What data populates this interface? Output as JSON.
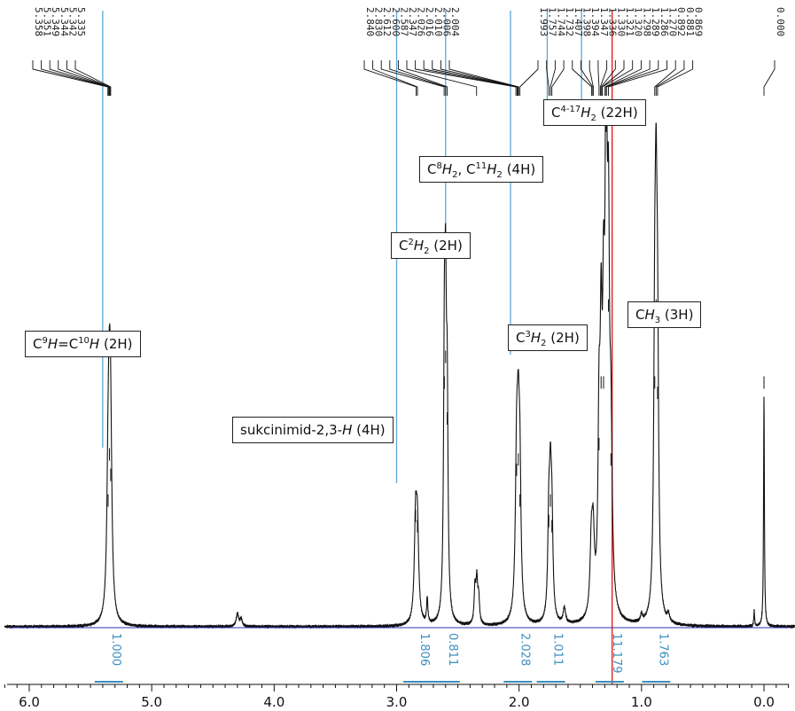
{
  "chart_data": {
    "type": "line",
    "xlim": [
      6.2,
      -0.25
    ],
    "x_ticks": [
      "6.0",
      "5.0",
      "4.0",
      "3.0",
      "2.0",
      "1.0",
      "0.0"
    ],
    "x_tick_values": [
      6.0,
      5.0,
      4.0,
      3.0,
      2.0,
      1.0,
      0.0
    ],
    "peak_labels": [
      "5.358",
      "5.351",
      "5.349",
      "5.344",
      "5.342",
      "5.335",
      "2.840",
      "2.830",
      "2.612",
      "2.600",
      "2.587",
      "2.347",
      "2.026",
      "2.016",
      "2.010",
      "2.006",
      "2.004",
      "1.993",
      "1.757",
      "1.744",
      "1.732",
      "1.407",
      "1.398",
      "1.394",
      "1.347",
      "1.336",
      "1.330",
      "1.321",
      "1.320",
      "1.298",
      "1.289",
      "1.286",
      "1.270",
      "0.892",
      "0.881",
      "0.869",
      "0.000"
    ],
    "integrals": [
      {
        "label": "1.000",
        "x": 5.35
      },
      {
        "label": "1.806",
        "x": 2.83
      },
      {
        "label": "0.811",
        "x": 2.6
      },
      {
        "label": "2.028",
        "x": 2.01
      },
      {
        "label": "1.011",
        "x": 1.74
      },
      {
        "label": "11.179",
        "x": 1.26
      },
      {
        "label": "1.763",
        "x": 0.88
      }
    ],
    "peaks": [
      {
        "x": 5.345,
        "h": 0.31,
        "w": 0.012
      },
      {
        "x": 5.335,
        "h": 0.27,
        "w": 0.012
      },
      {
        "x": 5.356,
        "h": 0.22,
        "w": 0.012
      },
      {
        "x": 4.3,
        "h": 0.025,
        "w": 0.012
      },
      {
        "x": 4.27,
        "h": 0.015,
        "w": 0.01
      },
      {
        "x": 2.845,
        "h": 0.19,
        "w": 0.012
      },
      {
        "x": 2.83,
        "h": 0.17,
        "w": 0.012
      },
      {
        "x": 2.75,
        "h": 0.05,
        "w": 0.006
      },
      {
        "x": 2.61,
        "h": 0.45,
        "w": 0.008
      },
      {
        "x": 2.6,
        "h": 0.5,
        "w": 0.008
      },
      {
        "x": 2.587,
        "h": 0.38,
        "w": 0.008
      },
      {
        "x": 2.36,
        "h": 0.07,
        "w": 0.008
      },
      {
        "x": 2.345,
        "h": 0.08,
        "w": 0.008
      },
      {
        "x": 2.33,
        "h": 0.05,
        "w": 0.008
      },
      {
        "x": 2.02,
        "h": 0.28,
        "w": 0.012
      },
      {
        "x": 2.006,
        "h": 0.3,
        "w": 0.012
      },
      {
        "x": 1.993,
        "h": 0.22,
        "w": 0.01
      },
      {
        "x": 1.757,
        "h": 0.18,
        "w": 0.01
      },
      {
        "x": 1.744,
        "h": 0.22,
        "w": 0.01
      },
      {
        "x": 1.732,
        "h": 0.17,
        "w": 0.01
      },
      {
        "x": 1.63,
        "h": 0.03,
        "w": 0.012
      },
      {
        "x": 1.41,
        "h": 0.13,
        "w": 0.012
      },
      {
        "x": 1.395,
        "h": 0.14,
        "w": 0.012
      },
      {
        "x": 1.347,
        "h": 0.33,
        "w": 0.01
      },
      {
        "x": 1.33,
        "h": 0.45,
        "w": 0.01
      },
      {
        "x": 1.31,
        "h": 0.45,
        "w": 0.01
      },
      {
        "x": 1.289,
        "h": 0.95,
        "w": 0.01
      },
      {
        "x": 1.27,
        "h": 0.6,
        "w": 0.01
      },
      {
        "x": 1.25,
        "h": 0.3,
        "w": 0.012
      },
      {
        "x": 1.0,
        "h": 0.015,
        "w": 0.008
      },
      {
        "x": 0.892,
        "h": 0.45,
        "w": 0.01
      },
      {
        "x": 0.881,
        "h": 0.6,
        "w": 0.01
      },
      {
        "x": 0.869,
        "h": 0.43,
        "w": 0.01
      },
      {
        "x": 0.78,
        "h": 0.015,
        "w": 0.01
      },
      {
        "x": 0.08,
        "h": 0.03,
        "w": 0.004
      },
      {
        "x": 0.0,
        "h": 0.45,
        "w": 0.004
      }
    ]
  },
  "annotations": {
    "olefin": {
      "pre": "C",
      "sup1": "9",
      "it1": "H",
      "mid": "=C",
      "sup2": "10",
      "it2": "H",
      "post": " (2H)"
    },
    "succ": {
      "pre": "sukcinimid-2,3-",
      "it": "H",
      "post": " (4H)"
    },
    "c2": {
      "pre": "C",
      "sup": "2",
      "it": "H",
      "sub": "2",
      "post": " (2H)"
    },
    "c8": {
      "pre": "C",
      "sup1": "8",
      "it1": "H",
      "sub1": "2",
      "mid": ", C",
      "sup2": "11",
      "it2": "H",
      "sub2": "2",
      "post": " (4H)"
    },
    "c3": {
      "pre": "C",
      "sup": "3",
      "it": "H",
      "sub": "2",
      "post": " (2H)"
    },
    "c4": {
      "pre": "C",
      "sup": "4-17",
      "it": "H",
      "sub": "2",
      "post": " (22H)"
    },
    "ch3": {
      "pre": "C",
      "it": "H",
      "sub": "3",
      "post": " (3H)"
    }
  }
}
